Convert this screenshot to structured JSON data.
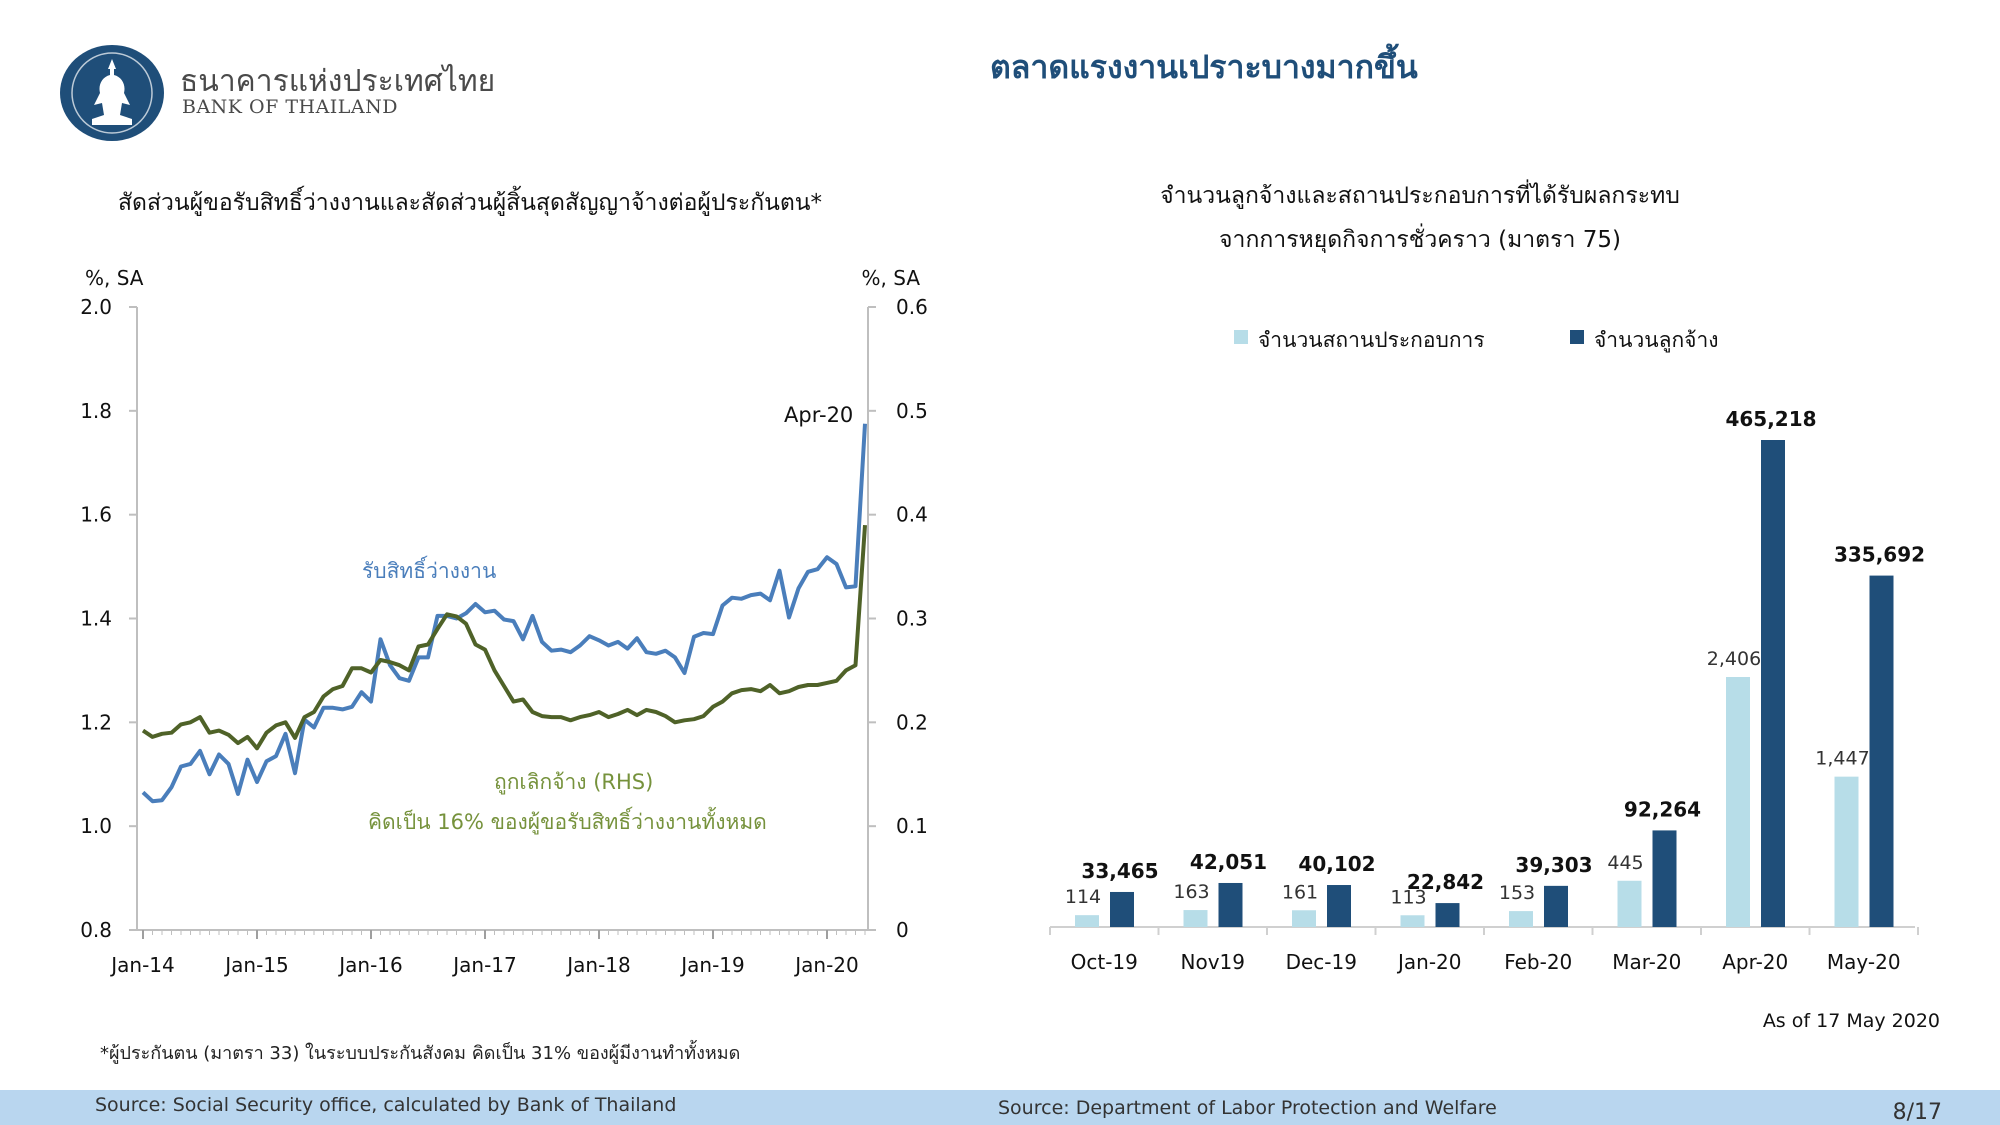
{
  "header": {
    "org_name_th": "ธนาคารแห่งประเทศไทย",
    "org_name_en": "BANK OF THAILAND",
    "page_title": "ตลาดแรงงานเปราะบางมากขึ้น",
    "logo_icon": "bank-of-thailand-seal-icon"
  },
  "left_panel": {
    "title": "สัดส่วนผู้ขอรับสิทธิ์ว่างงานและสัดส่วนผู้สิ้นสุดสัญญาจ้างต่อผู้ประกันตน*",
    "footnote": "*ผู้ประกันตน (มาตรา 33) ในระบบประกันสังคม คิดเป็น 31% ของผู้มีงานทำทั้งหมด",
    "source": "Source: Social Security office, calculated by Bank of Thailand"
  },
  "right_panel": {
    "title_line1": "จำนวนลูกจ้างและสถานประกอบการที่ได้รับผลกระทบ",
    "title_line2": "จากการหยุดกิจการชั่วคราว (มาตรา 75)",
    "as_of": "As of 17 May 2020",
    "source": "Source: Department of Labor Protection and Welfare"
  },
  "page_number": "8/17",
  "colors": {
    "brand_navy": "#1f4e79",
    "blue_line": "#4a7ebb",
    "green_line": "#4f6228",
    "green_text": "#76923c",
    "light_bar": "#b7dde8",
    "dark_bar": "#1f4e79",
    "source_bar": "#b9d6ef"
  },
  "chart_data": [
    {
      "type": "line",
      "y_unit_left": "%, SA",
      "y_unit_right": "%, SA",
      "ylim_left": [
        0.8,
        2.0
      ],
      "ylim_right": [
        0,
        0.6
      ],
      "yticks_left": [
        "0.8",
        "1.0",
        "1.2",
        "1.4",
        "1.6",
        "1.8",
        "2.0"
      ],
      "yticks_right": [
        "0",
        "0.1",
        "0.2",
        "0.3",
        "0.4",
        "0.5",
        "0.6"
      ],
      "x_start": "Jan-14",
      "x_end": "Apr-20",
      "xticks": [
        "Jan-14",
        "Jan-15",
        "Jan-16",
        "Jan-17",
        "Jan-18",
        "Jan-19",
        "Jan-20"
      ],
      "grid": false,
      "annotations": {
        "peak": "Apr-20",
        "rhs_note": "คิดเป็น 16% ของผู้ขอรับสิทธิ์ว่างงานทั้งหมด"
      },
      "series": [
        {
          "name": "รับสิทธิ์ว่างงาน",
          "axis": "left",
          "color": "#4a7ebb",
          "values": [
            1.065,
            1.048,
            1.05,
            1.075,
            1.115,
            1.12,
            1.145,
            1.1,
            1.138,
            1.12,
            1.062,
            1.128,
            1.085,
            1.125,
            1.135,
            1.178,
            1.102,
            1.205,
            1.19,
            1.228,
            1.228,
            1.225,
            1.23,
            1.258,
            1.24,
            1.36,
            1.31,
            1.285,
            1.28,
            1.325,
            1.325,
            1.405,
            1.405,
            1.4,
            1.41,
            1.428,
            1.412,
            1.415,
            1.398,
            1.395,
            1.36,
            1.405,
            1.355,
            1.338,
            1.34,
            1.335,
            1.348,
            1.366,
            1.358,
            1.348,
            1.355,
            1.342,
            1.362,
            1.335,
            1.332,
            1.338,
            1.325,
            1.295,
            1.365,
            1.372,
            1.37,
            1.425,
            1.44,
            1.438,
            1.445,
            1.448,
            1.435,
            1.492,
            1.402,
            1.458,
            1.49,
            1.495,
            1.518,
            1.505,
            1.46,
            1.462,
            1.775
          ]
        },
        {
          "name": "ถูกเลิกจ้าง (RHS)",
          "axis": "right",
          "color": "#4f6228",
          "values": [
            0.192,
            0.186,
            0.189,
            0.19,
            0.198,
            0.2,
            0.205,
            0.19,
            0.192,
            0.188,
            0.18,
            0.186,
            0.175,
            0.19,
            0.197,
            0.2,
            0.185,
            0.205,
            0.21,
            0.225,
            0.232,
            0.235,
            0.252,
            0.252,
            0.248,
            0.26,
            0.258,
            0.255,
            0.25,
            0.273,
            0.275,
            0.29,
            0.304,
            0.302,
            0.295,
            0.275,
            0.27,
            0.25,
            0.235,
            0.22,
            0.222,
            0.21,
            0.206,
            0.205,
            0.205,
            0.202,
            0.205,
            0.207,
            0.21,
            0.205,
            0.208,
            0.212,
            0.207,
            0.212,
            0.21,
            0.206,
            0.2,
            0.202,
            0.203,
            0.206,
            0.215,
            0.22,
            0.228,
            0.231,
            0.232,
            0.23,
            0.236,
            0.228,
            0.23,
            0.234,
            0.236,
            0.236,
            0.238,
            0.24,
            0.25,
            0.255,
            0.39
          ]
        }
      ]
    },
    {
      "type": "bar",
      "categories": [
        "Oct-19",
        "Nov19",
        "Dec-19",
        "Jan-20",
        "Feb-20",
        "Mar-20",
        "Apr-20",
        "May-20"
      ],
      "grid": false,
      "legend_position": "top",
      "series": [
        {
          "name": "จำนวนสถานประกอบการ",
          "color": "#b7dde8",
          "values": [
            114,
            163,
            161,
            113,
            153,
            445,
            2406,
            1447
          ],
          "labels": [
            "114",
            "163",
            "161",
            "113",
            "153",
            "445",
            "2,406",
            "1,447"
          ]
        },
        {
          "name": "จำนวนลูกจ้าง",
          "color": "#1f4e79",
          "values": [
            33465,
            42051,
            40102,
            22842,
            39303,
            92264,
            465218,
            335692
          ],
          "labels": [
            "33,465",
            "42,051",
            "40,102",
            "22,842",
            "39,303",
            "92,264",
            "465,218",
            "335,692"
          ]
        }
      ]
    }
  ]
}
